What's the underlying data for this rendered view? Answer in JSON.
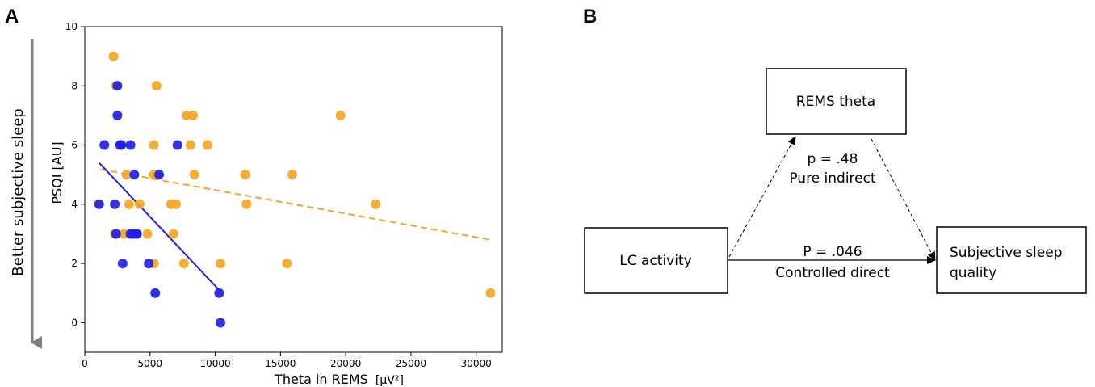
{
  "panel_a_label": "A",
  "panel_b_label": "B",
  "side_annotation": "Better subjective sleep",
  "colors": {
    "orange": "#f5a623",
    "blue": "#2020e6",
    "arrow_gray": "#808080"
  },
  "chart_data": {
    "type": "scatter",
    "title": "",
    "xlabel": "Theta in REMS",
    "xlabel_unit": "[μV²]",
    "ylabel": "PSQI  [AU]",
    "xlim": [
      0,
      32000
    ],
    "ylim": [
      -1,
      10
    ],
    "x_ticks": [
      0,
      5000,
      10000,
      15000,
      20000,
      25000,
      30000
    ],
    "y_ticks": [
      0,
      2,
      4,
      6,
      8,
      10
    ],
    "grid": false,
    "legend": "none",
    "series": [
      {
        "color": "#f5a623",
        "points": [
          [
            2200,
            9
          ],
          [
            2400,
            8
          ],
          [
            5500,
            8
          ],
          [
            7800,
            7
          ],
          [
            8300,
            7
          ],
          [
            19600,
            7
          ],
          [
            2800,
            6
          ],
          [
            5300,
            6
          ],
          [
            8100,
            6
          ],
          [
            9400,
            6
          ],
          [
            3200,
            5
          ],
          [
            5300,
            5
          ],
          [
            5500,
            5
          ],
          [
            8400,
            5
          ],
          [
            12300,
            5
          ],
          [
            15900,
            5
          ],
          [
            1100,
            4
          ],
          [
            3400,
            4
          ],
          [
            4200,
            4
          ],
          [
            6600,
            4
          ],
          [
            7000,
            4
          ],
          [
            12400,
            4
          ],
          [
            22300,
            4
          ],
          [
            2300,
            3
          ],
          [
            3000,
            3
          ],
          [
            4800,
            3
          ],
          [
            6800,
            3
          ],
          [
            5300,
            2
          ],
          [
            7600,
            2
          ],
          [
            10400,
            2
          ],
          [
            15500,
            2
          ],
          [
            31100,
            1
          ]
        ],
        "fit_line": {
          "x": [
            1200,
            31100
          ],
          "y": [
            5.18,
            2.8
          ],
          "style": "dashed"
        }
      },
      {
        "color": "#2020e6",
        "points": [
          [
            2500,
            8
          ],
          [
            2500,
            7
          ],
          [
            1500,
            6
          ],
          [
            2700,
            6
          ],
          [
            2800,
            6
          ],
          [
            3500,
            6
          ],
          [
            7100,
            6
          ],
          [
            3800,
            5
          ],
          [
            5700,
            5
          ],
          [
            1100,
            4
          ],
          [
            2300,
            4
          ],
          [
            2400,
            3
          ],
          [
            3500,
            3
          ],
          [
            3700,
            3
          ],
          [
            3900,
            3
          ],
          [
            4000,
            3
          ],
          [
            2900,
            2
          ],
          [
            4900,
            2
          ],
          [
            5400,
            1
          ],
          [
            10300,
            1
          ],
          [
            10400,
            0
          ]
        ],
        "fit_line": {
          "x": [
            1100,
            10300
          ],
          "y": [
            5.4,
            1.1
          ],
          "style": "solid"
        }
      }
    ]
  },
  "diagram": {
    "nodes": {
      "mediator": "REMS theta",
      "predictor": "LC activity",
      "outcome_line1": "Subjective sleep",
      "outcome_line2": "quality"
    },
    "indirect_p": "p = .48",
    "indirect_label": "Pure indirect",
    "direct_p": "P = .046",
    "direct_label": "Controlled direct"
  }
}
